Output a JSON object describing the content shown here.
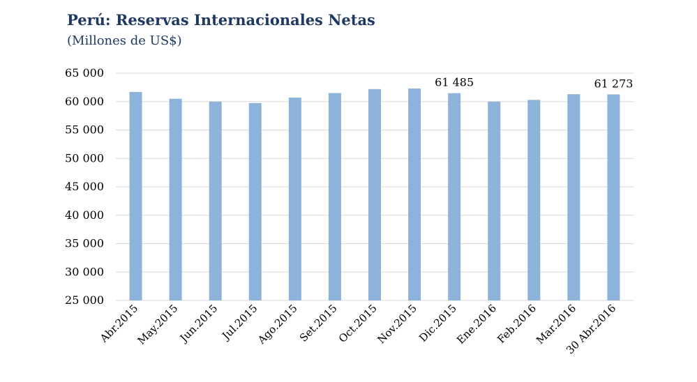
{
  "chart_data": {
    "type": "bar",
    "title": "Perú: Reservas Internacionales Netas",
    "subtitle": "(Millones de US$)",
    "categories": [
      "Abr.2015",
      "May.2015",
      "Jun.2015",
      "Jul.2015",
      "Ago.2015",
      "Set.2015",
      "Oct.2015",
      "Nov.2015",
      "Dic.2015",
      "Ene.2016",
      "Feb.2016",
      "Mar.2016",
      "30 Abr.2016"
    ],
    "values": [
      61700,
      60500,
      60000,
      59750,
      60700,
      61500,
      62200,
      62300,
      61485,
      60000,
      60300,
      61300,
      61273
    ],
    "data_labels": [
      {
        "index": 8,
        "text": "61 485"
      },
      {
        "index": 12,
        "text": "61 273"
      }
    ],
    "ylim": [
      25000,
      65000
    ],
    "yticks": [
      25000,
      30000,
      35000,
      40000,
      45000,
      50000,
      55000,
      60000,
      65000
    ],
    "ytick_labels": [
      "25 000",
      "30 000",
      "35 000",
      "40 000",
      "45 000",
      "50 000",
      "55 000",
      "60 000",
      "65 000"
    ],
    "grid": true,
    "bar_color": "#8db3da",
    "grid_color": "#d9d9d9",
    "title_color": "#1f3864"
  }
}
